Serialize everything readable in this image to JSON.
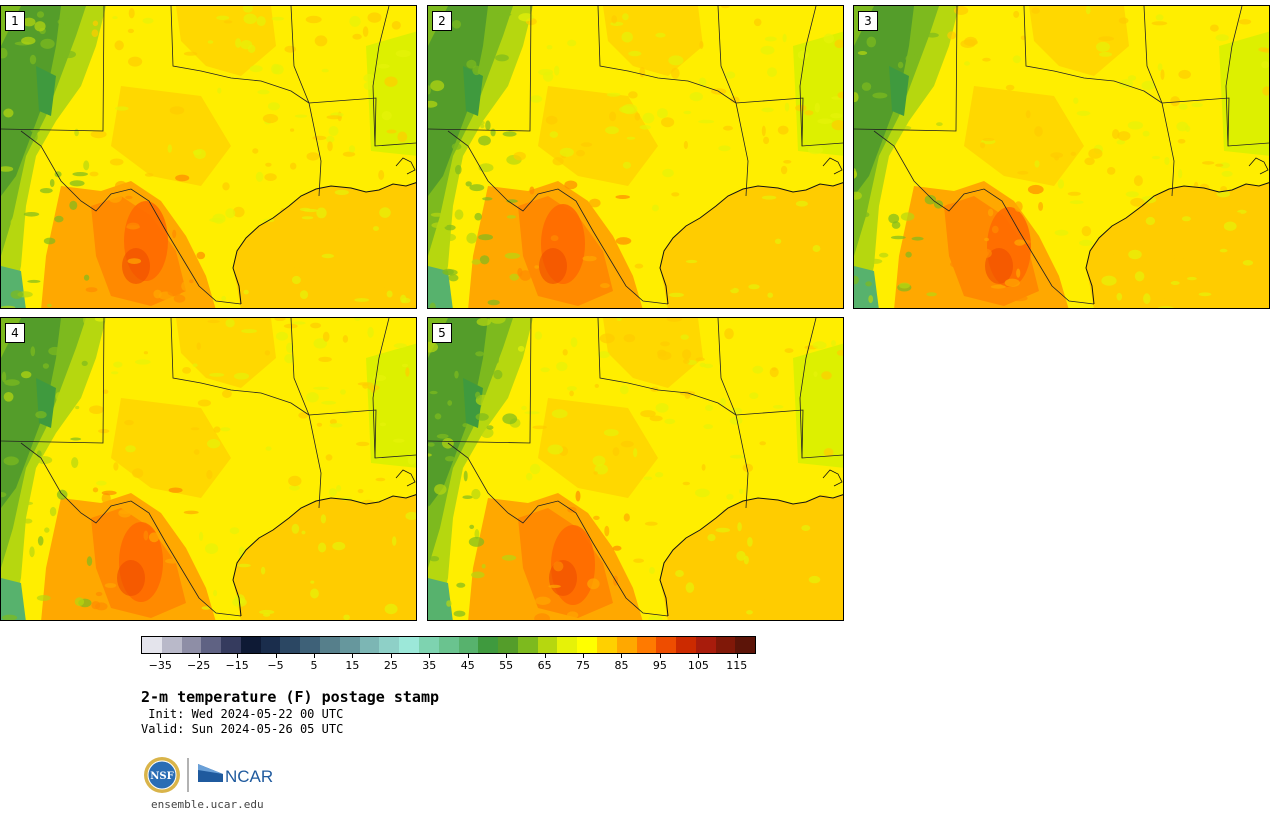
{
  "panels": [
    {
      "label": "1",
      "variant": 0
    },
    {
      "label": "2",
      "variant": 1
    },
    {
      "label": "3",
      "variant": 2
    },
    {
      "label": "4",
      "variant": 3
    },
    {
      "label": "5",
      "variant": 4
    }
  ],
  "colorbar": {
    "colors": [
      "#e4e4ec",
      "#b9b9c9",
      "#8e8ea6",
      "#5f6283",
      "#353b5e",
      "#0e1a35",
      "#1a2d4c",
      "#2b4763",
      "#3e6178",
      "#567f8b",
      "#66979d",
      "#7cb6b4",
      "#8ed0c7",
      "#9ce8d9",
      "#7ed3b0",
      "#6ac38f",
      "#57b26d",
      "#3f9a3e",
      "#549d2a",
      "#7dba1e",
      "#b6d70f",
      "#e6f208",
      "#ffff00",
      "#ffd000",
      "#ffa800",
      "#ff7a00",
      "#ee4d00",
      "#cc2a00",
      "#a81c0c",
      "#801808",
      "#5c1408"
    ],
    "ticks": [
      "−35",
      "−25",
      "−15",
      "−5",
      "5",
      "15",
      "25",
      "35",
      "45",
      "55",
      "65",
      "75",
      "85",
      "95",
      "105",
      "115"
    ],
    "tick_values": [
      -35,
      -25,
      -15,
      -5,
      5,
      15,
      25,
      35,
      45,
      55,
      65,
      75,
      85,
      95,
      105,
      115
    ],
    "min": -40,
    "max": 120
  },
  "title": "2-m temperature (F) postage stamp",
  "init": " Init: Wed 2024-05-22 00 UTC",
  "valid": "Valid: Sun 2024-05-26 05 UTC",
  "logo": {
    "nsf": "NSF",
    "ncar": "NCAR"
  },
  "website": "ensemble.ucar.edu"
}
